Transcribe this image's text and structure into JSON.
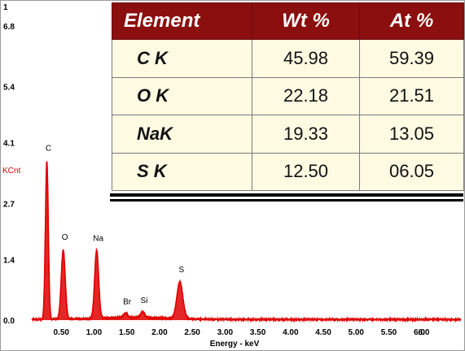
{
  "chart_data": {
    "type": "line",
    "corner_label": "1",
    "ylabel": "KCnt",
    "xlabel": "Energy - keV",
    "ylim": [
      0,
      6.8
    ],
    "xlim": [
      0,
      6.6
    ],
    "y_ticks": [
      "0.0",
      "1.4",
      "2.7",
      "4.1",
      "5.4",
      "6.8"
    ],
    "x_ticks": [
      "0.50",
      "1.00",
      "1.50",
      "2.00",
      "2.50",
      "3.00",
      "3.50",
      "4.00",
      "4.50",
      "5.00",
      "5.50",
      "6.00",
      "6."
    ],
    "series_color": "#e00000",
    "peaks": [
      {
        "label": "C",
        "energy": 0.28,
        "counts": 3.65
      },
      {
        "label": "O",
        "energy": 0.53,
        "counts": 1.6
      },
      {
        "label": "Na",
        "energy": 1.04,
        "counts": 1.57
      },
      {
        "label": "Br",
        "energy": 1.48,
        "counts": 0.1
      },
      {
        "label": "Si",
        "energy": 1.74,
        "counts": 0.13
      },
      {
        "label": "S",
        "energy": 2.31,
        "counts": 0.85
      }
    ]
  },
  "table": {
    "headers": [
      "Element",
      "Wt %",
      "At %"
    ],
    "rows": [
      {
        "element": "C K",
        "wt": "45.98",
        "at": "59.39"
      },
      {
        "element": "O K",
        "wt": "22.18",
        "at": "21.51"
      },
      {
        "element": "NaK",
        "wt": "19.33",
        "at": "13.05"
      },
      {
        "element": "S K",
        "wt": "12.50",
        "at": "06.05"
      }
    ]
  }
}
